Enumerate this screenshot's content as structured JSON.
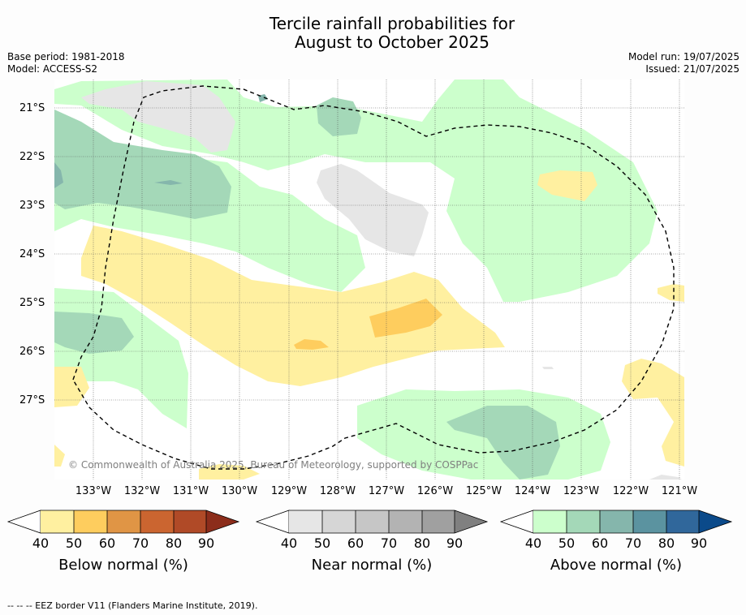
{
  "title_line1": "Tercile rainfall probabilities for",
  "title_line2": "August to October 2025",
  "meta_left": {
    "base_period": "Base period: 1981-2018",
    "model": "Model: ACCESS-S2"
  },
  "meta_right": {
    "model_run": "Model run: 19/07/2025",
    "issued": "Issued: 21/07/2025"
  },
  "lat_labels": [
    "21°S",
    "22°S",
    "23°S",
    "24°S",
    "25°S",
    "26°S",
    "27°S"
  ],
  "lon_labels": [
    "133°W",
    "132°W",
    "131°W",
    "130°W",
    "129°W",
    "128°W",
    "127°W",
    "126°W",
    "125°W",
    "124°W",
    "123°W",
    "122°W",
    "121°W"
  ],
  "copyright": "© Commonwealth of Australia 2025, Bureau of Meteorology, supported by COSPPac",
  "colorbars": [
    {
      "title": "Below normal (%)",
      "ticks": [
        "40",
        "50",
        "60",
        "70",
        "80",
        "90"
      ],
      "colors": [
        "#ffffff",
        "#fff0a0",
        "#fecd5e",
        "#e09545",
        "#cb6530",
        "#b04a27",
        "#8c2d1b"
      ]
    },
    {
      "title": "Near normal (%)",
      "ticks": [
        "40",
        "50",
        "60",
        "70",
        "80",
        "90"
      ],
      "colors": [
        "#ffffff",
        "#e6e6e6",
        "#d6d6d6",
        "#c6c6c6",
        "#b3b3b3",
        "#a0a0a0",
        "#808080"
      ]
    },
    {
      "title": "Above normal (%)",
      "ticks": [
        "40",
        "50",
        "60",
        "70",
        "80",
        "90"
      ],
      "colors": [
        "#ffffff",
        "#ccffcc",
        "#a4d8b8",
        "#85b6ac",
        "#5b93a0",
        "#30679b",
        "#0b4a8a"
      ]
    }
  ],
  "footnote": "--  --  -- EEZ border V11 (Flanders Marine Institute, 2019)."
}
